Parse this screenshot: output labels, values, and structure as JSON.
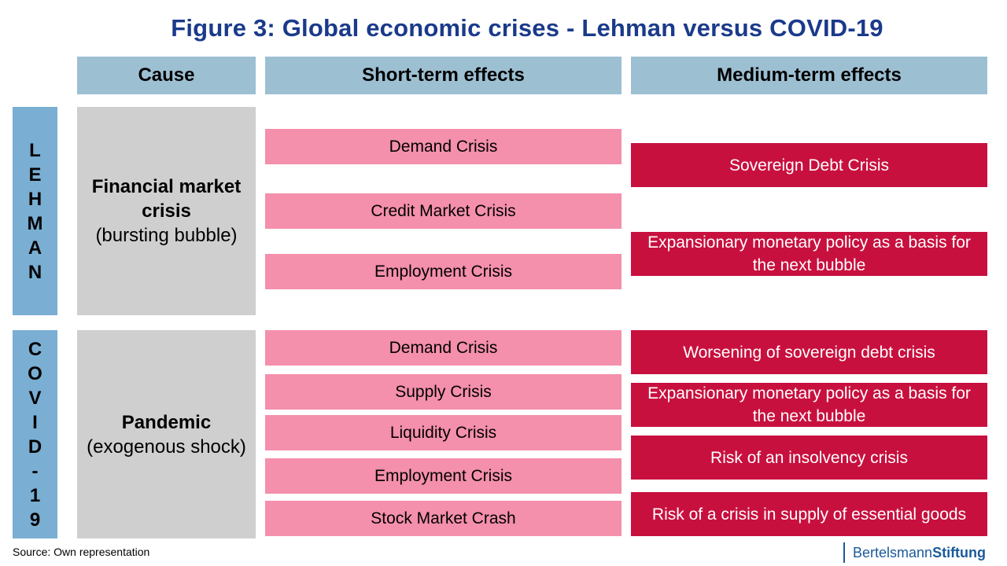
{
  "title": "Figure 3: Global economic crises - Lehman versus COVID-19",
  "headers": {
    "cause": "Cause",
    "short_term": "Short-term effects",
    "medium_term": "Medium-term effects"
  },
  "lehman": {
    "side_letters": [
      "L",
      "E",
      "H",
      "M",
      "A",
      "N"
    ],
    "cause_main": "Financial market crisis",
    "cause_sub": "(bursting bubble)",
    "short_term": [
      "Demand Crisis",
      "Credit Market Crisis",
      "Employment Crisis"
    ],
    "medium_term": [
      "Sovereign Debt Crisis",
      "Expansionary monetary policy as a basis for the next bubble"
    ]
  },
  "covid": {
    "side_letters": [
      "C",
      "O",
      "V",
      "I",
      "D",
      "-",
      "1",
      "9"
    ],
    "cause_main": "Pandemic",
    "cause_sub": "(exogenous shock)",
    "short_term": [
      "Demand Crisis",
      "Supply Crisis",
      "Liquidity Crisis",
      "Employment Crisis",
      "Stock Market Crash"
    ],
    "medium_term": [
      "Worsening of sovereign debt crisis",
      "Expansionary monetary policy as a basis for the next bubble",
      "Risk of an insolvency crisis",
      "Risk of a crisis in supply of essential goods"
    ]
  },
  "source": "Source: Own representation",
  "logo": {
    "part1": "Bertelsmann",
    "part2": "Stiftung"
  },
  "colors": {
    "title": "#1a3a8a",
    "header": "#9dbfd2",
    "side_label": "#7aaed3",
    "cause_box": "#cfcfcf",
    "short_term_box": "#f48fac",
    "medium_term_box": "#c8103f"
  }
}
